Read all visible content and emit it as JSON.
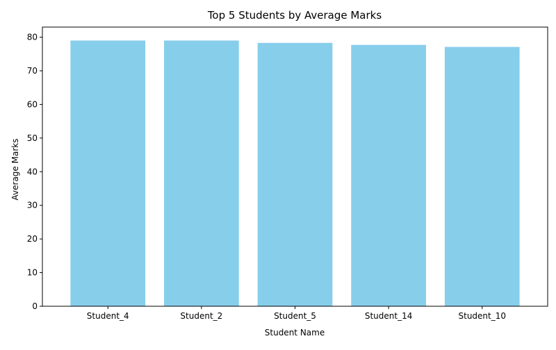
{
  "chart_data": {
    "type": "bar",
    "title": "Top 5 Students by Average Marks",
    "xlabel": "Student Name",
    "ylabel": "Average Marks",
    "categories": [
      "Student_4",
      "Student_2",
      "Student_5",
      "Student_14",
      "Student_10"
    ],
    "values": [
      79.0,
      79.0,
      78.3,
      77.7,
      77.1
    ],
    "ylim": [
      0,
      83
    ],
    "yticks": [
      0,
      10,
      20,
      30,
      40,
      50,
      60,
      70,
      80
    ],
    "grid": false,
    "legend": "none",
    "bar_color": "#87ceeb"
  }
}
